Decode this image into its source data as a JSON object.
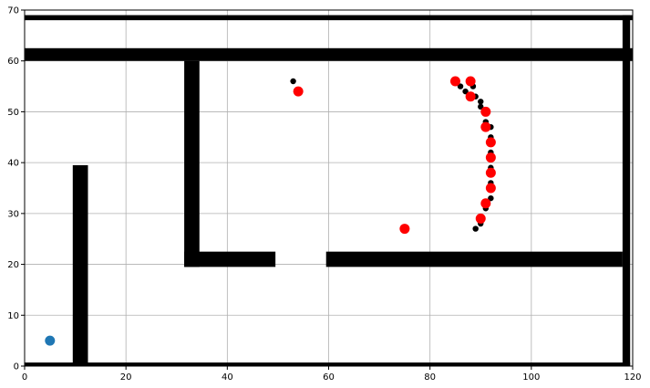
{
  "chart_data": {
    "type": "scatter",
    "title": "",
    "xlabel": "",
    "ylabel": "",
    "xlim": [
      0,
      120
    ],
    "ylim": [
      0,
      70
    ],
    "grid": true,
    "x_ticks": [
      0,
      20,
      40,
      60,
      80,
      100,
      120
    ],
    "y_ticks": [
      0,
      10,
      20,
      30,
      40,
      50,
      60,
      70
    ],
    "x_tick_labels": [
      "0",
      "20",
      "40",
      "60",
      "80",
      "100",
      "120"
    ],
    "y_tick_labels": [
      "0",
      "10",
      "20",
      "30",
      "40",
      "50",
      "60",
      "70"
    ],
    "obstacles": [
      {
        "x0": 0,
        "x1": 120,
        "y0": 68,
        "y1": 69
      },
      {
        "x0": 0,
        "x1": 120,
        "y0": 60,
        "y1": 62.5
      },
      {
        "x0": 118,
        "x1": 119.5,
        "y0": 0,
        "y1": 69
      },
      {
        "x0": 0,
        "x1": 119.5,
        "y0": 0,
        "y1": 0.7
      },
      {
        "x0": 9.5,
        "x1": 12.5,
        "y0": 0,
        "y1": 39.5
      },
      {
        "x0": 31.5,
        "x1": 34.5,
        "y0": 19.5,
        "y1": 60
      },
      {
        "x0": 31.5,
        "x1": 49.5,
        "y0": 19.5,
        "y1": 22.5
      },
      {
        "x0": 59.5,
        "x1": 118,
        "y0": 19.5,
        "y1": 22.5
      }
    ],
    "series": [
      {
        "color": "#1f77b4",
        "marker_size": "large",
        "points": [
          [
            5,
            5
          ]
        ]
      },
      {
        "color": "#000000",
        "marker_size": "small",
        "points": [
          [
            53,
            56
          ],
          [
            86,
            55
          ],
          [
            87,
            54
          ],
          [
            88.5,
            55
          ],
          [
            89,
            53
          ],
          [
            90,
            52
          ],
          [
            90,
            51
          ],
          [
            91,
            48
          ],
          [
            92,
            47
          ],
          [
            92,
            45
          ],
          [
            92,
            42
          ],
          [
            92,
            39
          ],
          [
            92,
            36
          ],
          [
            92,
            33
          ],
          [
            91,
            31
          ],
          [
            90,
            28
          ],
          [
            89,
            27
          ]
        ]
      },
      {
        "color": "#ff0000",
        "marker_size": "large",
        "points": [
          [
            54,
            54
          ],
          [
            75,
            27
          ],
          [
            85,
            56
          ],
          [
            88,
            56
          ],
          [
            88,
            53
          ],
          [
            91,
            50
          ],
          [
            91,
            47
          ],
          [
            92,
            44
          ],
          [
            92,
            41
          ],
          [
            92,
            38
          ],
          [
            92,
            35
          ],
          [
            91,
            32
          ],
          [
            90,
            29
          ]
        ]
      }
    ]
  }
}
